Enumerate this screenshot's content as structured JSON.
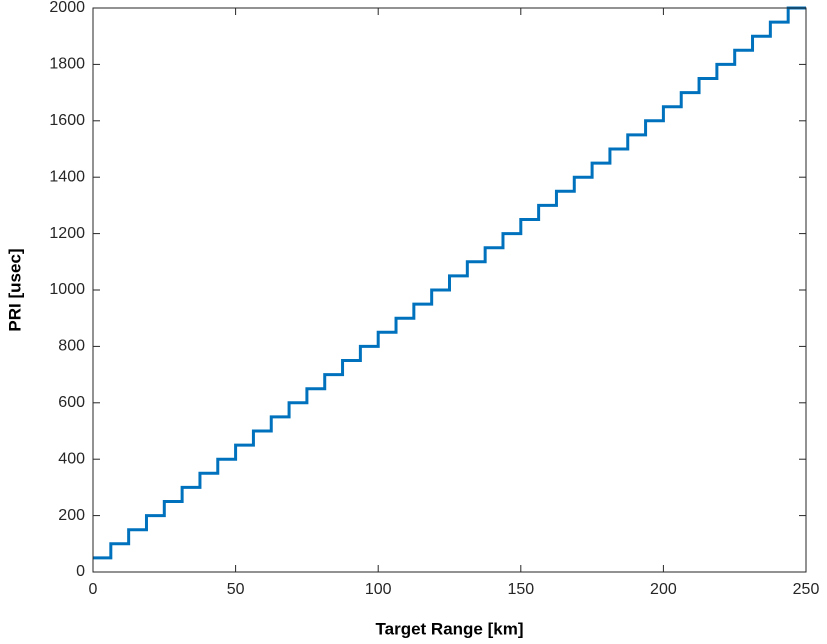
{
  "chart_data": {
    "type": "line",
    "xlabel": "Target Range [km]",
    "ylabel": "PRI [usec]",
    "x": [
      0,
      6.25,
      6.25,
      12.5,
      12.5,
      18.75,
      18.75,
      25,
      25,
      31.25,
      31.25,
      37.5,
      37.5,
      43.75,
      43.75,
      50,
      50,
      56.25,
      56.25,
      62.5,
      62.5,
      68.75,
      68.75,
      75,
      75,
      81.25,
      81.25,
      87.5,
      87.5,
      93.75,
      93.75,
      100,
      100,
      106.25,
      106.25,
      112.5,
      112.5,
      118.75,
      118.75,
      125,
      125,
      131.25,
      131.25,
      137.5,
      137.5,
      143.75,
      143.75,
      150,
      150,
      156.25,
      156.25,
      162.5,
      162.5,
      168.75,
      168.75,
      175,
      175,
      181.25,
      181.25,
      187.5,
      187.5,
      193.75,
      193.75,
      200,
      200,
      206.25,
      206.25,
      212.5,
      212.5,
      218.75,
      218.75,
      225,
      225,
      231.25,
      231.25,
      237.5,
      237.5,
      243.75,
      243.75,
      250
    ],
    "values": [
      50,
      50,
      100,
      100,
      150,
      150,
      200,
      200,
      250,
      250,
      300,
      300,
      350,
      350,
      400,
      400,
      450,
      450,
      500,
      500,
      550,
      550,
      600,
      600,
      650,
      650,
      700,
      700,
      750,
      750,
      800,
      800,
      850,
      850,
      900,
      900,
      950,
      950,
      1000,
      1000,
      1050,
      1050,
      1100,
      1100,
      1150,
      1150,
      1200,
      1200,
      1250,
      1250,
      1300,
      1300,
      1350,
      1350,
      1400,
      1400,
      1450,
      1450,
      1500,
      1500,
      1550,
      1550,
      1600,
      1600,
      1650,
      1650,
      1700,
      1700,
      1750,
      1750,
      1800,
      1800,
      1850,
      1850,
      1900,
      1900,
      1950,
      1950,
      2000,
      2000
    ],
    "color": "#0072bd",
    "xlim": [
      0,
      250
    ],
    "xticks": [
      0,
      50,
      100,
      150,
      200,
      250
    ],
    "ylim": [
      0,
      2000
    ],
    "yticks": [
      0,
      200,
      400,
      600,
      800,
      1000,
      1200,
      1400,
      1600,
      1800,
      2000
    ],
    "grid": false
  }
}
